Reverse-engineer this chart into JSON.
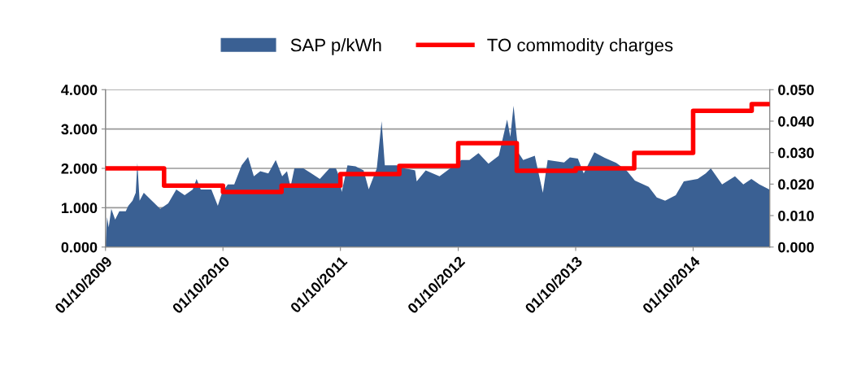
{
  "chart_data": {
    "type": "area",
    "legend": "top",
    "grid": "y",
    "xlim": [
      "2009-10-01",
      "2015-05-27"
    ],
    "xticks": [
      {
        "value": "2009-10-01",
        "label": "01/10/2009"
      },
      {
        "value": "2010-10-01",
        "label": "01/10/2010"
      },
      {
        "value": "2011-10-01",
        "label": "01/10/2011"
      },
      {
        "value": "2012-10-01",
        "label": "01/10/2012"
      },
      {
        "value": "2013-10-01",
        "label": "01/10/2013"
      },
      {
        "value": "2014-10-01",
        "label": "01/10/2014"
      }
    ],
    "ylim": [
      0,
      4
    ],
    "yticks": [
      {
        "value": 0,
        "label": "0.000"
      },
      {
        "value": 1,
        "label": "1.000"
      },
      {
        "value": 2,
        "label": "2.000"
      },
      {
        "value": 3,
        "label": "3.000"
      },
      {
        "value": 4,
        "label": "4.000"
      }
    ],
    "y2lim": [
      0,
      0.05
    ],
    "y2ticks": [
      {
        "value": 0,
        "label": "0.000"
      },
      {
        "value": 0.01,
        "label": "0.010"
      },
      {
        "value": 0.02,
        "label": "0.020"
      },
      {
        "value": 0.03,
        "label": "0.030"
      },
      {
        "value": 0.04,
        "label": "0.040"
      },
      {
        "value": 0.05,
        "label": "0.050"
      }
    ],
    "series": [
      {
        "name": "SAP p/kWh",
        "color": "#3a6093",
        "x": [
          "2009-10-01",
          "2009-10-06",
          "2009-10-11",
          "2009-10-19",
          "2009-10-31",
          "2009-11-13",
          "2009-12-03",
          "2009-12-11",
          "2009-12-24",
          "2010-01-03",
          "2010-01-08",
          "2010-01-15",
          "2010-01-28",
          "2010-02-22",
          "2010-03-20",
          "2010-04-14",
          "2010-05-09",
          "2010-06-04",
          "2010-06-29",
          "2010-07-11",
          "2010-07-24",
          "2010-08-26",
          "2010-09-15",
          "2010-09-28",
          "2010-10-16",
          "2010-11-05",
          "2010-11-28",
          "2010-12-18",
          "2011-01-05",
          "2011-01-25",
          "2011-02-19",
          "2011-03-14",
          "2011-04-03",
          "2011-04-18",
          "2011-04-29",
          "2011-05-11",
          "2011-06-08",
          "2011-07-03",
          "2011-07-29",
          "2011-08-28",
          "2011-09-17",
          "2011-09-27",
          "2011-10-05",
          "2011-10-23",
          "2011-11-17",
          "2011-12-12",
          "2011-12-28",
          "2012-01-22",
          "2012-02-06",
          "2012-02-16",
          "2012-03-23",
          "2012-04-17",
          "2012-05-20",
          "2012-05-25",
          "2012-06-22",
          "2012-08-04",
          "2012-09-06",
          "2012-10-11",
          "2012-11-05",
          "2012-12-03",
          "2013-01-03",
          "2013-02-04",
          "2013-03-02",
          "2013-03-12",
          "2013-03-22",
          "2013-04-06",
          "2013-04-21",
          "2013-05-27",
          "2013-06-21",
          "2013-07-06",
          "2013-08-26",
          "2013-09-13",
          "2013-10-08",
          "2013-10-26",
          "2013-11-28",
          "2013-12-30",
          "2014-02-04",
          "2014-03-09",
          "2014-04-03",
          "2014-05-16",
          "2014-06-10",
          "2014-07-06",
          "2014-08-08",
          "2014-09-02",
          "2014-10-15",
          "2014-11-09",
          "2014-11-25",
          "2014-12-30",
          "2015-02-08",
          "2015-03-06",
          "2015-03-31",
          "2015-04-25",
          "2015-05-26"
        ],
        "values": [
          0.02,
          0.76,
          0.5,
          0.97,
          0.7,
          0.91,
          0.91,
          1.05,
          1.18,
          1.38,
          2.14,
          1.18,
          1.38,
          1.18,
          0.97,
          1.11,
          1.46,
          1.32,
          1.46,
          1.73,
          1.46,
          1.46,
          1.05,
          1.38,
          1.59,
          1.59,
          2.08,
          2.29,
          1.8,
          1.93,
          1.87,
          2.21,
          1.8,
          1.93,
          1.53,
          2.0,
          2.0,
          1.87,
          1.73,
          2.0,
          2.0,
          1.8,
          1.4,
          2.08,
          2.05,
          1.95,
          1.47,
          2.0,
          3.2,
          2.08,
          2.08,
          2.0,
          1.95,
          1.67,
          1.95,
          1.8,
          2.0,
          2.21,
          2.21,
          2.39,
          2.12,
          2.32,
          3.24,
          2.8,
          3.59,
          2.4,
          2.21,
          2.32,
          1.38,
          2.21,
          2.15,
          2.28,
          2.25,
          1.87,
          2.41,
          2.27,
          2.14,
          1.94,
          1.69,
          1.53,
          1.26,
          1.18,
          1.32,
          1.67,
          1.73,
          1.87,
          2.0,
          1.59,
          1.8,
          1.59,
          1.73,
          1.59,
          1.46
        ]
      },
      {
        "name": "TO commodity charges",
        "type": "step",
        "axis": "y2",
        "color": "#ff0000",
        "x": [
          "2009-10-01",
          "2010-04-01",
          "2010-10-01",
          "2011-04-01",
          "2011-10-01",
          "2012-04-01",
          "2012-10-01",
          "2013-04-01",
          "2013-10-01",
          "2014-04-01",
          "2014-10-01",
          "2015-04-01",
          "2015-05-27"
        ],
        "values": [
          0.025,
          0.0195,
          0.0175,
          0.0195,
          0.0232,
          0.0258,
          0.033,
          0.0242,
          0.025,
          0.0299,
          0.0433,
          0.0454,
          0.0454
        ]
      }
    ]
  }
}
